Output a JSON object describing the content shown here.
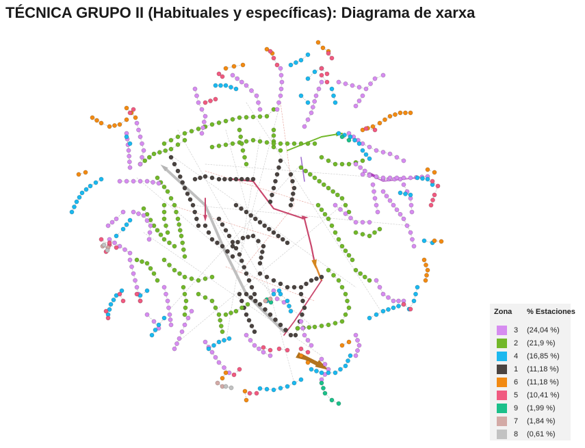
{
  "title": "TÉCNICA GRUPO II (Habituales y específicas): Diagrama de xarxa",
  "legend": {
    "header_zone": "Zona",
    "header_pct": "% Estaciones",
    "items": [
      {
        "zone": "3",
        "pct": "(24,04 %)",
        "color": "#d68cf0"
      },
      {
        "zone": "2",
        "pct": "(21,9 %)",
        "color": "#72b82a"
      },
      {
        "zone": "4",
        "pct": "(16,85 %)",
        "color": "#1bb8ef"
      },
      {
        "zone": "1",
        "pct": "(11,18 %)",
        "color": "#4a4340"
      },
      {
        "zone": "6",
        "pct": "(11,18 %)",
        "color": "#f28a12"
      },
      {
        "zone": "5",
        "pct": "(10,41 %)",
        "color": "#f05a80"
      },
      {
        "zone": "9",
        "pct": "(1,99 %)",
        "color": "#1cc08a"
      },
      {
        "zone": "7",
        "pct": "(1,84 %)",
        "color": "#d3aaa6"
      },
      {
        "zone": "8",
        "pct": "(0,61 %)",
        "color": "#c2c2c2"
      }
    ]
  }
}
